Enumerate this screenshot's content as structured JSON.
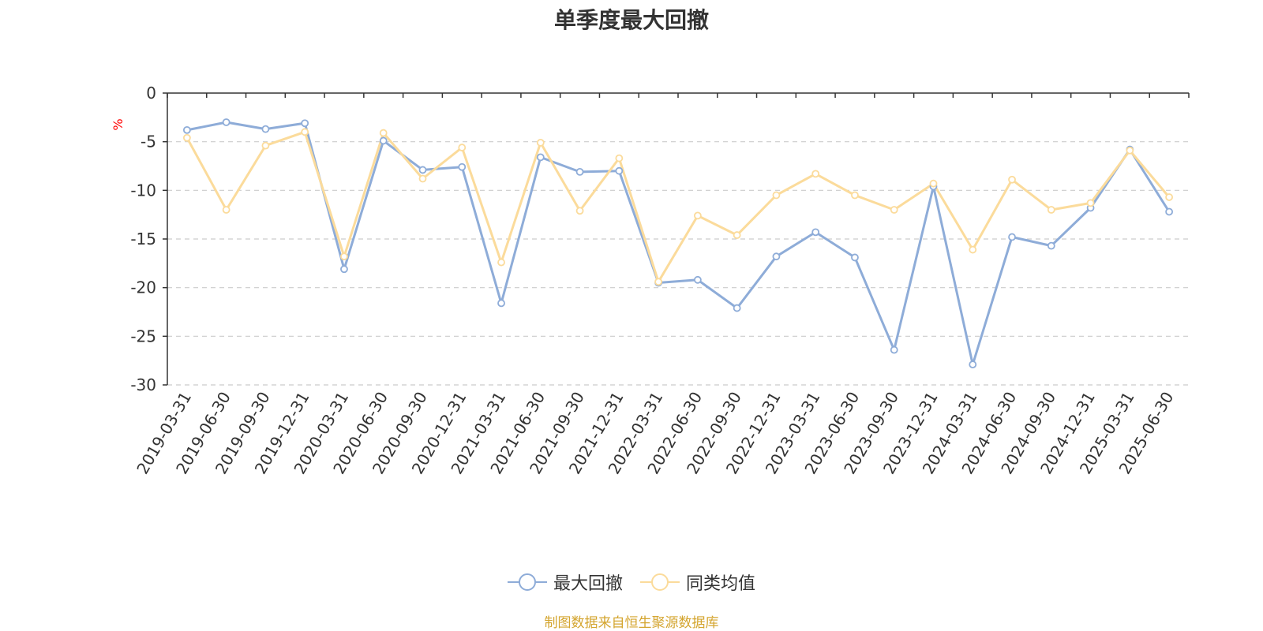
{
  "title": "单季度最大回撤",
  "source": "制图数据来自恒生聚源数据库",
  "colors": {
    "series1": "#8eacd8",
    "series2": "#fbdb9b",
    "source_text": "#d4a52f",
    "axis": "#333333",
    "grid": "#cccccc",
    "unit": "#ff0000"
  },
  "chart_data": {
    "type": "line",
    "title": "单季度最大回撤",
    "ylabel": "%",
    "xlabel": "",
    "ylim": [
      -30,
      0
    ],
    "yticks": [
      0,
      -5,
      -10,
      -15,
      -20,
      -25,
      -30
    ],
    "grid": "horizontal-dashed",
    "legend_position": "bottom",
    "categories": [
      "2019-03-31",
      "2019-06-30",
      "2019-09-30",
      "2019-12-31",
      "2020-03-31",
      "2020-06-30",
      "2020-09-30",
      "2020-12-31",
      "2021-03-31",
      "2021-06-30",
      "2021-09-30",
      "2021-12-31",
      "2022-03-31",
      "2022-06-30",
      "2022-09-30",
      "2022-12-31",
      "2023-03-31",
      "2023-06-30",
      "2023-09-30",
      "2023-12-31",
      "2024-03-31",
      "2024-06-30",
      "2024-09-30",
      "2024-12-31",
      "2025-03-31",
      "2025-06-30"
    ],
    "series": [
      {
        "name": "最大回撤",
        "color": "#8eacd8",
        "values": [
          -3.8,
          -3.0,
          -3.7,
          -3.1,
          -18.1,
          -4.9,
          -7.9,
          -7.6,
          -21.6,
          -6.6,
          -8.1,
          -8.0,
          -19.5,
          -19.2,
          -22.1,
          -16.8,
          -14.3,
          -16.9,
          -26.4,
          -9.6,
          -27.9,
          -14.8,
          -15.7,
          -11.8,
          -5.8,
          -12.2
        ]
      },
      {
        "name": "同类均值",
        "color": "#fbdb9b",
        "values": [
          -4.6,
          -12.0,
          -5.4,
          -4.0,
          -16.8,
          -4.1,
          -8.8,
          -5.6,
          -17.4,
          -5.1,
          -12.1,
          -6.7,
          -19.4,
          -12.6,
          -14.6,
          -10.5,
          -8.3,
          -10.5,
          -12.0,
          -9.3,
          -16.1,
          -8.9,
          -12.0,
          -11.3,
          -5.9,
          -10.7
        ]
      }
    ]
  }
}
